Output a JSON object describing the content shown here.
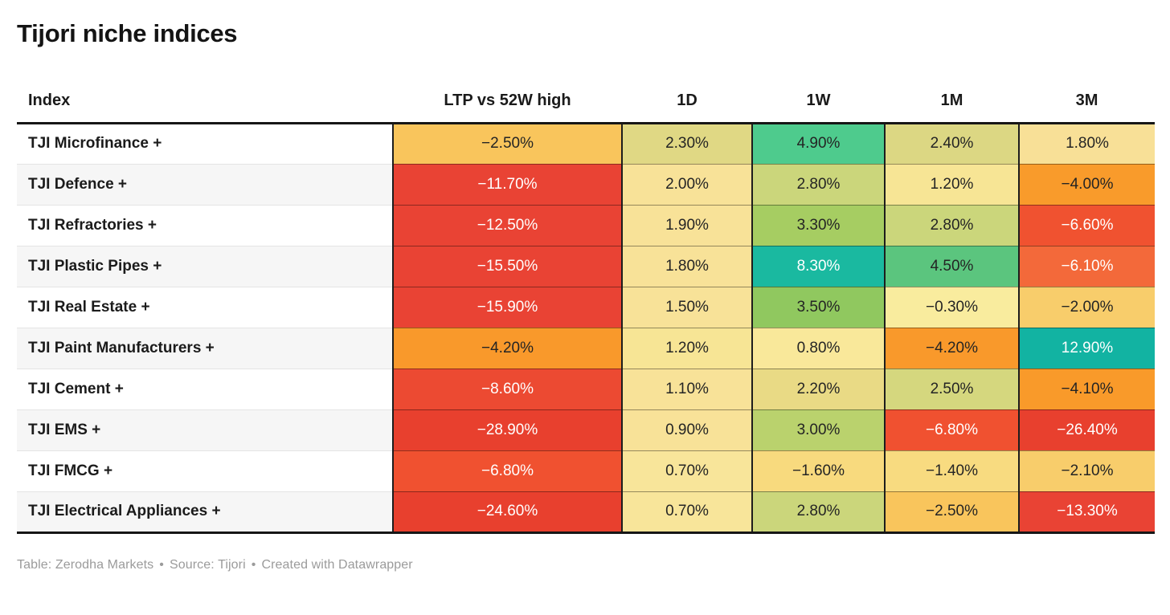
{
  "title": "Tijori niche indices",
  "columns": [
    {
      "key": "index",
      "label": "Index"
    },
    {
      "key": "ltp-vs-52w-high",
      "label": "LTP vs 52W high"
    },
    {
      "key": "1d",
      "label": "1D"
    },
    {
      "key": "1w",
      "label": "1W"
    },
    {
      "key": "1m",
      "label": "1M"
    },
    {
      "key": "3m",
      "label": "3M"
    }
  ],
  "rows": [
    {
      "index": "TJI Microfinance +",
      "cells": [
        {
          "value": "−2.50%",
          "bg": "#f9c55c",
          "text": "dark"
        },
        {
          "value": "2.30%",
          "bg": "#e0d884",
          "text": "dark"
        },
        {
          "value": "4.90%",
          "bg": "#4ecb8d",
          "text": "dark"
        },
        {
          "value": "2.40%",
          "bg": "#dcd783",
          "text": "dark"
        },
        {
          "value": "1.80%",
          "bg": "#f8e097",
          "text": "dark"
        }
      ]
    },
    {
      "index": "TJI Defence +",
      "cells": [
        {
          "value": "−11.70%",
          "bg": "#e94334",
          "text": "light"
        },
        {
          "value": "2.00%",
          "bg": "#f8e298",
          "text": "dark"
        },
        {
          "value": "2.80%",
          "bg": "#cbd67b",
          "text": "dark"
        },
        {
          "value": "1.20%",
          "bg": "#f7e595",
          "text": "dark"
        },
        {
          "value": "−4.00%",
          "bg": "#f99b2b",
          "text": "dark"
        }
      ]
    },
    {
      "index": "TJI Refractories +",
      "cells": [
        {
          "value": "−12.50%",
          "bg": "#e94334",
          "text": "light"
        },
        {
          "value": "1.90%",
          "bg": "#f8e298",
          "text": "dark"
        },
        {
          "value": "3.30%",
          "bg": "#a6cd62",
          "text": "dark"
        },
        {
          "value": "2.80%",
          "bg": "#cbd67b",
          "text": "dark"
        },
        {
          "value": "−6.60%",
          "bg": "#f05230",
          "text": "light"
        }
      ]
    },
    {
      "index": "TJI Plastic Pipes +",
      "cells": [
        {
          "value": "−15.50%",
          "bg": "#e94334",
          "text": "light"
        },
        {
          "value": "1.80%",
          "bg": "#f8e298",
          "text": "dark"
        },
        {
          "value": "8.30%",
          "bg": "#1ab9a0",
          "text": "light"
        },
        {
          "value": "4.50%",
          "bg": "#5bc57e",
          "text": "dark"
        },
        {
          "value": "−6.10%",
          "bg": "#f3693a",
          "text": "light"
        }
      ]
    },
    {
      "index": "TJI Real Estate +",
      "cells": [
        {
          "value": "−15.90%",
          "bg": "#e94334",
          "text": "light"
        },
        {
          "value": "1.50%",
          "bg": "#f8e298",
          "text": "dark"
        },
        {
          "value": "3.50%",
          "bg": "#90c85f",
          "text": "dark"
        },
        {
          "value": "−0.30%",
          "bg": "#f9ec9e",
          "text": "dark"
        },
        {
          "value": "−2.00%",
          "bg": "#f8cd6b",
          "text": "dark"
        }
      ]
    },
    {
      "index": "TJI Paint Manufacturers +",
      "cells": [
        {
          "value": "−4.20%",
          "bg": "#f9992b",
          "text": "dark"
        },
        {
          "value": "1.20%",
          "bg": "#f7e595",
          "text": "dark"
        },
        {
          "value": "0.80%",
          "bg": "#f9e89a",
          "text": "dark"
        },
        {
          "value": "−4.20%",
          "bg": "#f9992b",
          "text": "dark"
        },
        {
          "value": "12.90%",
          "bg": "#12b3a2",
          "text": "light"
        }
      ]
    },
    {
      "index": "TJI Cement +",
      "cells": [
        {
          "value": "−8.60%",
          "bg": "#ec4a32",
          "text": "light"
        },
        {
          "value": "1.10%",
          "bg": "#f8e298",
          "text": "dark"
        },
        {
          "value": "2.20%",
          "bg": "#e9da85",
          "text": "dark"
        },
        {
          "value": "2.50%",
          "bg": "#d5d77e",
          "text": "dark"
        },
        {
          "value": "−4.10%",
          "bg": "#f99a2a",
          "text": "dark"
        }
      ]
    },
    {
      "index": "TJI EMS +",
      "cells": [
        {
          "value": "−28.90%",
          "bg": "#e8402e",
          "text": "light"
        },
        {
          "value": "0.90%",
          "bg": "#f8e298",
          "text": "dark"
        },
        {
          "value": "3.00%",
          "bg": "#bad26d",
          "text": "dark"
        },
        {
          "value": "−6.80%",
          "bg": "#f05130",
          "text": "light"
        },
        {
          "value": "−26.40%",
          "bg": "#e8402e",
          "text": "light"
        }
      ]
    },
    {
      "index": "TJI FMCG +",
      "cells": [
        {
          "value": "−6.80%",
          "bg": "#f05130",
          "text": "light"
        },
        {
          "value": "0.70%",
          "bg": "#f8e59a",
          "text": "dark"
        },
        {
          "value": "−1.60%",
          "bg": "#f8da7e",
          "text": "dark"
        },
        {
          "value": "−1.40%",
          "bg": "#f8db80",
          "text": "dark"
        },
        {
          "value": "−2.10%",
          "bg": "#f8cd6b",
          "text": "dark"
        }
      ]
    },
    {
      "index": "TJI Electrical Appliances +",
      "cells": [
        {
          "value": "−24.60%",
          "bg": "#e8402e",
          "text": "light"
        },
        {
          "value": "0.70%",
          "bg": "#f8e59a",
          "text": "dark"
        },
        {
          "value": "2.80%",
          "bg": "#cbd67b",
          "text": "dark"
        },
        {
          "value": "−2.50%",
          "bg": "#f9c55c",
          "text": "dark"
        },
        {
          "value": "−13.30%",
          "bg": "#e94334",
          "text": "light"
        }
      ]
    }
  ],
  "footer": {
    "parts": [
      "Table: Zerodha Markets",
      "Source: Tijori",
      "Created with Datawrapper"
    ],
    "separator": "•"
  },
  "colors": {
    "dark_text": "#242424",
    "light_text": "#ffffff",
    "cell_border": "#1d1d1d",
    "table_rule": "#161616",
    "row_alt_bg": "#f6f6f6",
    "footer_text": "#9b9b9b"
  },
  "chart_data": {
    "type": "table",
    "title": "Tijori niche indices",
    "columns": [
      "Index",
      "LTP vs 52W high",
      "1D",
      "1W",
      "1M",
      "3M"
    ],
    "rows": [
      [
        "TJI Microfinance +",
        -2.5,
        2.3,
        4.9,
        2.4,
        1.8
      ],
      [
        "TJI Defence +",
        -11.7,
        2.0,
        2.8,
        1.2,
        -4.0
      ],
      [
        "TJI Refractories +",
        -12.5,
        1.9,
        3.3,
        2.8,
        -6.6
      ],
      [
        "TJI Plastic Pipes +",
        -15.5,
        1.8,
        8.3,
        4.5,
        -6.1
      ],
      [
        "TJI Real Estate +",
        -15.9,
        1.5,
        3.5,
        -0.3,
        -2.0
      ],
      [
        "TJI Paint Manufacturers +",
        -4.2,
        1.2,
        0.8,
        -4.2,
        12.9
      ],
      [
        "TJI Cement +",
        -8.6,
        1.1,
        2.2,
        2.5,
        -4.1
      ],
      [
        "TJI EMS +",
        -28.9,
        0.9,
        3.0,
        -6.8,
        -26.4
      ],
      [
        "TJI FMCG +",
        -6.8,
        0.7,
        -1.6,
        -1.4,
        -2.1
      ],
      [
        "TJI Electrical Appliances +",
        -24.6,
        0.7,
        2.8,
        -2.5,
        -13.3
      ]
    ],
    "units": "percent",
    "color_scale": "diverging red-yellow-green-teal heatmap on value cells"
  }
}
